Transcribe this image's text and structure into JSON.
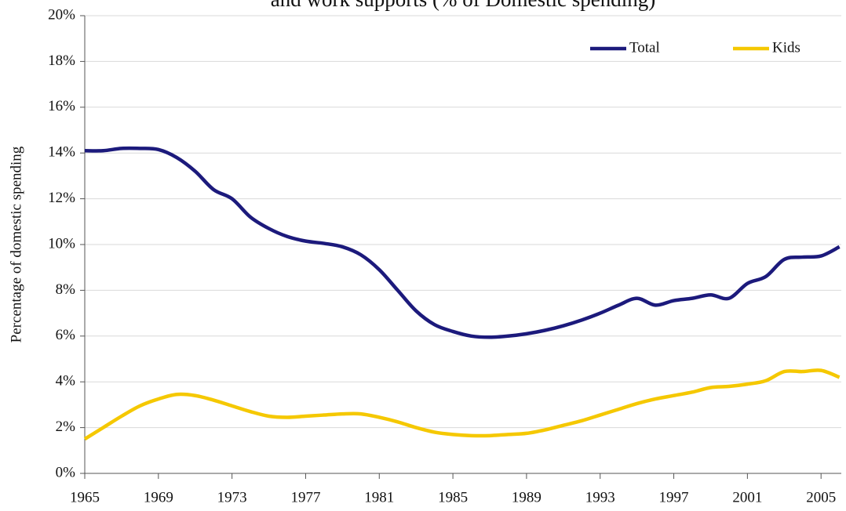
{
  "chart_data": {
    "type": "line",
    "title": "and work supports (% of Domestic spending)",
    "y_label": "Percentage of domestic spending",
    "x": [
      1965,
      1966,
      1967,
      1968,
      1969,
      1970,
      1971,
      1972,
      1973,
      1974,
      1975,
      1976,
      1977,
      1978,
      1979,
      1980,
      1981,
      1982,
      1983,
      1984,
      1985,
      1986,
      1987,
      1988,
      1989,
      1990,
      1991,
      1992,
      1993,
      1994,
      1995,
      1996,
      1997,
      1998,
      1999,
      2000,
      2001,
      2002,
      2003,
      2004,
      2005,
      2006
    ],
    "series": [
      {
        "name": "Total",
        "color": "#1c1a7c",
        "values": [
          14.1,
          14.1,
          14.2,
          14.2,
          14.15,
          13.8,
          13.2,
          12.4,
          12.0,
          11.2,
          10.7,
          10.35,
          10.15,
          10.05,
          9.9,
          9.55,
          8.9,
          8.0,
          7.1,
          6.5,
          6.2,
          6.0,
          5.95,
          6.0,
          6.1,
          6.25,
          6.45,
          6.7,
          7.0,
          7.35,
          7.65,
          7.35,
          7.55,
          7.65,
          7.8,
          7.65,
          8.3,
          8.6,
          9.35,
          9.45,
          9.5,
          9.9
        ]
      },
      {
        "name": "Kids",
        "color": "#f5c800",
        "values": [
          1.5,
          2.0,
          2.5,
          2.95,
          3.25,
          3.45,
          3.4,
          3.2,
          2.95,
          2.7,
          2.5,
          2.45,
          2.5,
          2.55,
          2.6,
          2.6,
          2.45,
          2.25,
          2.0,
          1.8,
          1.7,
          1.65,
          1.65,
          1.7,
          1.75,
          1.9,
          2.1,
          2.3,
          2.55,
          2.8,
          3.05,
          3.25,
          3.4,
          3.55,
          3.75,
          3.8,
          3.9,
          4.05,
          4.45,
          4.45,
          4.5,
          4.2
        ]
      }
    ],
    "xlim": [
      1965,
      2006.1
    ],
    "xticks": [
      1965,
      1969,
      1973,
      1977,
      1981,
      1985,
      1989,
      1993,
      1997,
      2001,
      2005
    ],
    "ylim": [
      0,
      20
    ],
    "yticks": [
      {
        "value": 0,
        "label": "0%"
      },
      {
        "value": 2,
        "label": "2%"
      },
      {
        "value": 4,
        "label": "4%"
      },
      {
        "value": 6,
        "label": "6%"
      },
      {
        "value": 8,
        "label": "8%"
      },
      {
        "value": 10,
        "label": "10%"
      },
      {
        "value": 12,
        "label": "12%"
      },
      {
        "value": 14,
        "label": "14%"
      },
      {
        "value": 16,
        "label": "16%"
      },
      {
        "value": 18,
        "label": "18%"
      },
      {
        "value": 20,
        "label": "20%"
      }
    ],
    "grid": true,
    "legend": "top-right"
  }
}
